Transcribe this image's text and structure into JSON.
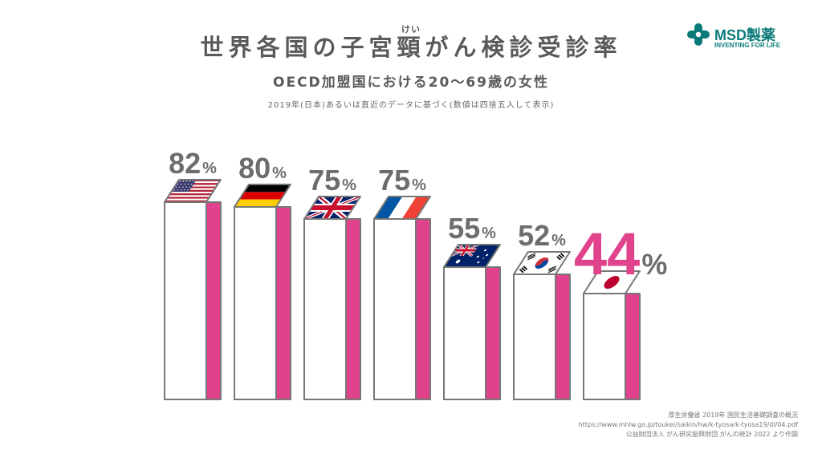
{
  "brand": {
    "name": "MSD製薬",
    "tagline": "INVENTING FOR LIFE",
    "color": "#0b7b7a"
  },
  "header": {
    "title": "世界各国の子宮頸がん検診受診率",
    "ruby": "けい",
    "subtitle": "OECD加盟国における20～69歳の女性",
    "note": "2019年(日本)あるいは直近のデータに基づく(数値は四捨五入して表示)"
  },
  "chart_data": {
    "type": "bar",
    "title": "世界各国の子宮頸がん検診受診率",
    "categories": [
      "米国",
      "ドイツ",
      "英国",
      "フランス",
      "オーストラリア",
      "韓国",
      "日本"
    ],
    "series": [
      {
        "values": [
          82,
          80,
          75,
          75,
          55,
          52,
          44
        ]
      }
    ],
    "value_suffix": "%",
    "flags": [
      "us-flag",
      "germany-flag",
      "uk-flag",
      "france-flag",
      "australia-flag",
      "korea-flag",
      "japan-flag"
    ],
    "highlight_index": 6,
    "colors": {
      "bar_face": "#ffffff",
      "bar_side": "#e0438c",
      "outline": "#777777",
      "label": "#6d6d6d",
      "highlight": "#e0438c"
    },
    "ylim": [
      0,
      100
    ]
  },
  "source": {
    "line1": "厚生労働省 2019年 国民生活基礎調査の概況",
    "line2": "https://www.mhlw.go.jp/toukei/saikin/hw/k-tyosa/k-tyosa19/dl/04.pdf",
    "line3": "公益財団法人 がん研究振興財団 がんの統計 2022 より作図"
  }
}
